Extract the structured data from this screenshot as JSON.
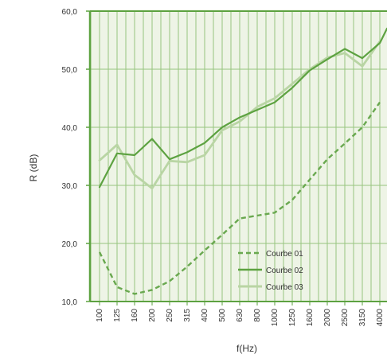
{
  "chart_data": {
    "type": "line",
    "xlabel": "f(Hz)",
    "ylabel": "R (dB)",
    "categories": [
      "100",
      "125",
      "160",
      "200",
      "250",
      "315",
      "400",
      "500",
      "630",
      "800",
      "1000",
      "1250",
      "1600",
      "2000",
      "2500",
      "3150",
      "4000"
    ],
    "ylim": [
      10,
      60
    ],
    "yticks": [
      "10,0",
      "20,0",
      "30,0",
      "40,0",
      "50,0",
      "60,0"
    ],
    "grid": true,
    "legend_position": "bottom-right",
    "series": [
      {
        "name": "Courbe 01",
        "style": "dashed",
        "color": "#69a84f",
        "values": [
          18.5,
          12.5,
          11.3,
          12.0,
          13.5,
          16.0,
          18.8,
          21.5,
          24.3,
          24.8,
          25.3,
          27.5,
          31.0,
          34.5,
          37.2,
          40.0,
          44.3
        ]
      },
      {
        "name": "Courbe 02",
        "style": "solid",
        "color": "#5da241",
        "values": [
          29.7,
          35.5,
          35.2,
          38.0,
          34.5,
          35.7,
          37.3,
          40.0,
          41.7,
          43.0,
          44.3,
          46.8,
          49.8,
          51.7,
          53.5,
          51.9,
          54.5
        ]
      },
      {
        "name": "Courbe 03",
        "style": "solid",
        "color": "#b9d5a4",
        "values": [
          34.3,
          37.0,
          31.8,
          29.5,
          34.2,
          34.0,
          35.2,
          39.5,
          41.0,
          43.5,
          45.0,
          47.5,
          50.0,
          52.0,
          52.8,
          50.5,
          54.8
        ]
      }
    ],
    "extra_series_end": 57.0
  }
}
